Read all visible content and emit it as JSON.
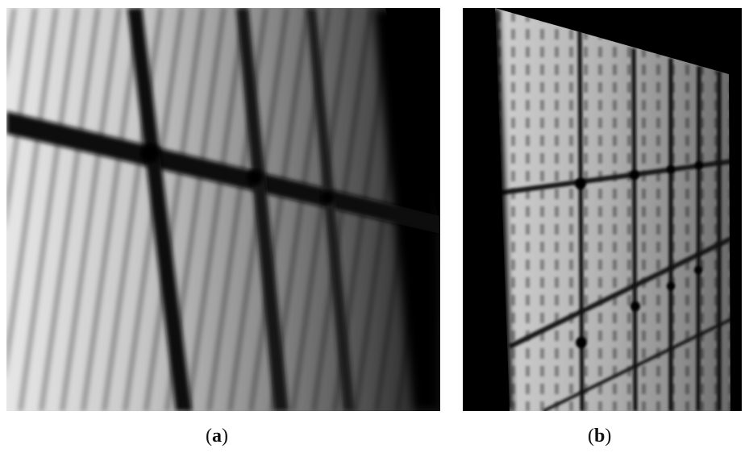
{
  "panels": [
    {
      "id": "a",
      "caption_open": "(",
      "caption_letter": "a",
      "caption_close": ")"
    },
    {
      "id": "b",
      "caption_open": "(",
      "caption_letter": "b",
      "caption_close": ")"
    }
  ]
}
